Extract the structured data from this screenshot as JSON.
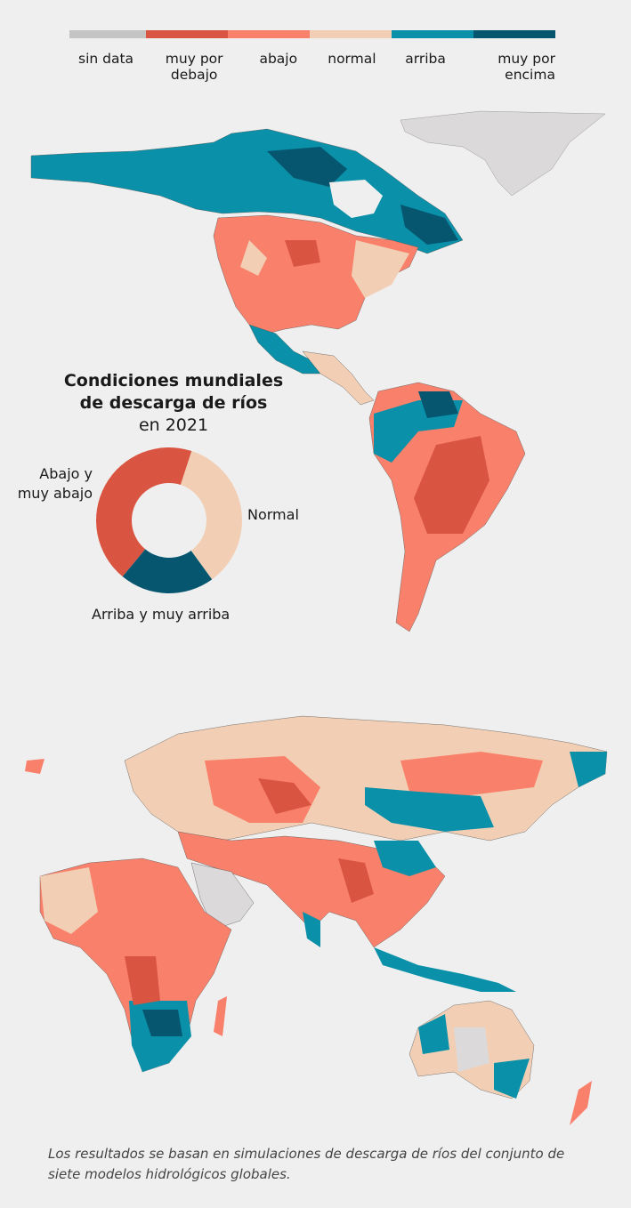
{
  "legend": {
    "items": [
      {
        "label": "sin data",
        "color": "#c4c4c4"
      },
      {
        "label": "muy por debajo",
        "color": "#d95542"
      },
      {
        "label": "abajo",
        "color": "#f9806a"
      },
      {
        "label": "normal",
        "color": "#f2cfb4"
      },
      {
        "label": "arriba",
        "color": "#0a90a8"
      },
      {
        "label": "muy por encima",
        "color": "#065670"
      }
    ]
  },
  "chart_data": {
    "type": "pie",
    "title": "Condiciones mundiales de descarga de ríos",
    "subtitle": "en 2021",
    "categories": [
      "Abajo y muy abajo",
      "Normal",
      "Arriba y muy arriba"
    ],
    "values": [
      44,
      35,
      21
    ],
    "colors": [
      "#d95542",
      "#f2cfb4",
      "#065670"
    ]
  },
  "caption": "Los resultados se basan en simulaciones de descarga de ríos del conjunto de siete modelos hidrológicos globales."
}
